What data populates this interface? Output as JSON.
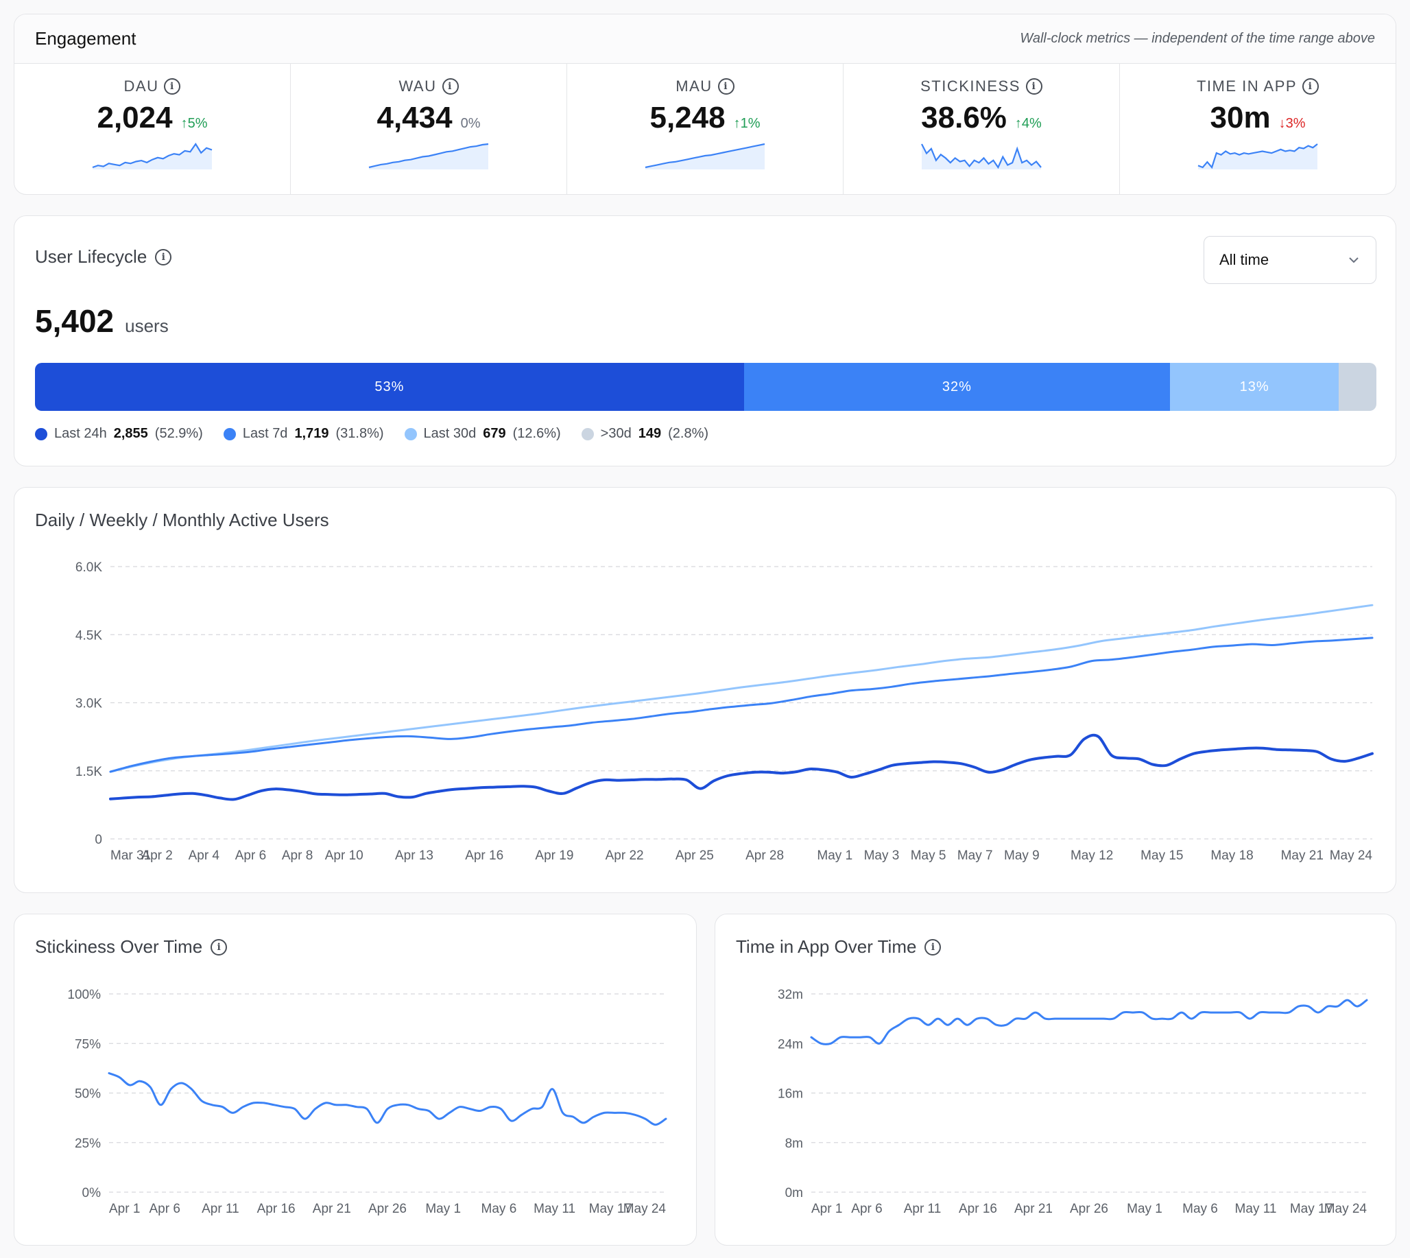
{
  "engagement": {
    "title": "Engagement",
    "note": "Wall-clock metrics — independent of the time range above",
    "metrics": [
      {
        "label": "DAU",
        "value": "2,024",
        "delta": "↑5%",
        "trend": "up",
        "spark": [
          10,
          12,
          11,
          14,
          13,
          12,
          15,
          14,
          16,
          17,
          15,
          18,
          20,
          19,
          22,
          24,
          23,
          27,
          26,
          34,
          25,
          30,
          28
        ]
      },
      {
        "label": "WAU",
        "value": "4,434",
        "delta": "0%",
        "trend": "flat",
        "spark": [
          10,
          12,
          14,
          15,
          17,
          18,
          20,
          21,
          23,
          25,
          26,
          28,
          30,
          32,
          33,
          35,
          37,
          39,
          40,
          42,
          43
        ]
      },
      {
        "label": "MAU",
        "value": "5,248",
        "delta": "↑1%",
        "trend": "up",
        "spark": [
          10,
          12,
          14,
          16,
          18,
          19,
          21,
          23,
          25,
          27,
          29,
          30,
          32,
          34,
          36,
          38,
          40,
          42,
          44,
          46,
          48
        ]
      },
      {
        "label": "STICKINESS",
        "value": "38.6%",
        "delta": "↑4%",
        "trend": "up",
        "spark": [
          34,
          26,
          30,
          20,
          25,
          22,
          18,
          22,
          19,
          20,
          15,
          20,
          18,
          22,
          17,
          20,
          14,
          23,
          16,
          18,
          30,
          18,
          20,
          16,
          19,
          14
        ]
      },
      {
        "label": "TIME IN APP",
        "value": "30m",
        "delta": "↓3%",
        "trend": "down",
        "spark": [
          14,
          12,
          18,
          12,
          28,
          26,
          30,
          27,
          28,
          26,
          28,
          27,
          28,
          29,
          30,
          29,
          28,
          30,
          32,
          30,
          31,
          30,
          34,
          33,
          36,
          34,
          38
        ]
      }
    ]
  },
  "lifecycle": {
    "title": "User Lifecycle",
    "range": "All time",
    "total": "5,402",
    "total_unit": "users",
    "segments": [
      {
        "name": "Last 24h",
        "count": "2,855",
        "pct": "(52.9%)",
        "bar_label": "53%",
        "fraction": 0.529,
        "color": "#1d4ed8"
      },
      {
        "name": "Last 7d",
        "count": "1,719",
        "pct": "(31.8%)",
        "bar_label": "32%",
        "fraction": 0.318,
        "color": "#3b82f6"
      },
      {
        "name": "Last 30d",
        "count": "679",
        "pct": "(12.6%)",
        "bar_label": "13%",
        "fraction": 0.126,
        "color": "#93c5fd"
      },
      {
        "name": ">30d",
        "count": "149",
        "pct": "(2.8%)",
        "bar_label": "",
        "fraction": 0.028,
        "color": "#cbd5e1"
      }
    ]
  },
  "chart_data": [
    {
      "type": "line",
      "title": "Daily / Weekly / Monthly Active Users",
      "ylim": [
        0,
        6000
      ],
      "y_ticks": [
        "0",
        "1.5K",
        "3.0K",
        "4.5K",
        "6.0K"
      ],
      "x_ticks": [
        "Mar 31",
        "Apr 2",
        "Apr 4",
        "Apr 6",
        "Apr 8",
        "Apr 10",
        "Apr 13",
        "Apr 16",
        "Apr 19",
        "Apr 22",
        "Apr 25",
        "Apr 28",
        "May 1",
        "May 3",
        "May 5",
        "May 7",
        "May 9",
        "May 12",
        "May 15",
        "May 18",
        "May 21",
        "May 24"
      ],
      "x_tick_days": [
        0,
        2,
        4,
        6,
        8,
        10,
        13,
        16,
        19,
        22,
        25,
        28,
        31,
        33,
        35,
        37,
        39,
        42,
        45,
        48,
        51,
        54
      ],
      "grid": true,
      "series": [
        {
          "color": "#93c5fd",
          "width": 3,
          "values": [
            1480,
            1600,
            1700,
            1780,
            1840,
            1890,
            1950,
            2020,
            2090,
            2160,
            2220,
            2280,
            2340,
            2400,
            2460,
            2520,
            2580,
            2640,
            2700,
            2760,
            2830,
            2900,
            2960,
            3020,
            3080,
            3140,
            3200,
            3270,
            3340,
            3400,
            3460,
            3530,
            3600,
            3660,
            3720,
            3790,
            3850,
            3920,
            3970,
            4000,
            4060,
            4120,
            4180,
            4260,
            4360,
            4420,
            4480,
            4540,
            4600,
            4680,
            4750,
            4820,
            4880,
            4940,
            5010,
            5080,
            5150
          ]
        },
        {
          "color": "#3b82f6",
          "width": 3,
          "values": [
            1480,
            1600,
            1700,
            1780,
            1820,
            1850,
            1880,
            1920,
            1980,
            2030,
            2080,
            2130,
            2180,
            2220,
            2250,
            2260,
            2230,
            2200,
            2240,
            2310,
            2370,
            2420,
            2460,
            2500,
            2560,
            2600,
            2640,
            2700,
            2760,
            2800,
            2860,
            2910,
            2950,
            2990,
            3060,
            3140,
            3200,
            3270,
            3300,
            3350,
            3420,
            3470,
            3510,
            3550,
            3590,
            3640,
            3680,
            3730,
            3800,
            3920,
            3950,
            4000,
            4060,
            4120,
            4170,
            4230,
            4260,
            4290,
            4270,
            4310,
            4350,
            4370,
            4400,
            4430
          ]
        },
        {
          "color": "#1d4ed8",
          "width": 4,
          "values": [
            880,
            900,
            920,
            930,
            960,
            990,
            1000,
            960,
            900,
            870,
            960,
            1060,
            1100,
            1080,
            1040,
            990,
            980,
            970,
            980,
            990,
            1000,
            930,
            920,
            1000,
            1050,
            1090,
            1110,
            1130,
            1140,
            1150,
            1160,
            1140,
            1050,
            1000,
            1120,
            1240,
            1300,
            1290,
            1300,
            1310,
            1310,
            1320,
            1300,
            1110,
            1280,
            1390,
            1440,
            1470,
            1470,
            1450,
            1480,
            1540,
            1520,
            1470,
            1360,
            1430,
            1520,
            1620,
            1660,
            1680,
            1700,
            1690,
            1660,
            1580,
            1470,
            1520,
            1640,
            1740,
            1790,
            1820,
            1850,
            2200,
            2260,
            1840,
            1780,
            1760,
            1640,
            1620,
            1760,
            1880,
            1930,
            1960,
            1980,
            2000,
            2000,
            1970,
            1960,
            1950,
            1920,
            1760,
            1710,
            1780,
            1880
          ]
        }
      ]
    },
    {
      "type": "line",
      "title": "Stickiness Over Time",
      "ylim": [
        0,
        100
      ],
      "y_ticks": [
        "0%",
        "25%",
        "50%",
        "75%",
        "100%"
      ],
      "x_ticks": [
        "Apr 1",
        "Apr 6",
        "Apr 11",
        "Apr 16",
        "Apr 21",
        "Apr 26",
        "May 1",
        "May 6",
        "May 11",
        "May 17",
        "May 24"
      ],
      "grid": true,
      "series": [
        {
          "color": "#3b82f6",
          "width": 3,
          "values": [
            60,
            58,
            54,
            56,
            53,
            44,
            52,
            55,
            52,
            46,
            44,
            43,
            40,
            43,
            45,
            45,
            44,
            43,
            42,
            37,
            42,
            45,
            44,
            44,
            43,
            42,
            35,
            42,
            44,
            44,
            42,
            41,
            37,
            40,
            43,
            42,
            41,
            43,
            42,
            36,
            39,
            42,
            43,
            52,
            40,
            38,
            35,
            38,
            40,
            40,
            40,
            39,
            37,
            34,
            37
          ]
        }
      ]
    },
    {
      "type": "line",
      "title": "Time in App Over Time",
      "ylim": [
        0,
        32
      ],
      "y_ticks": [
        "0m",
        "8m",
        "16m",
        "24m",
        "32m"
      ],
      "x_ticks": [
        "Apr 1",
        "Apr 6",
        "Apr 11",
        "Apr 16",
        "Apr 21",
        "Apr 26",
        "May 1",
        "May 6",
        "May 11",
        "May 17",
        "May 24"
      ],
      "grid": true,
      "series": [
        {
          "color": "#3b82f6",
          "width": 3,
          "values": [
            25,
            24,
            24,
            25,
            25,
            25,
            25,
            24,
            26,
            27,
            28,
            28,
            27,
            28,
            27,
            28,
            27,
            28,
            28,
            27,
            27,
            28,
            28,
            29,
            28,
            28,
            28,
            28,
            28,
            28,
            28,
            28,
            29,
            29,
            29,
            28,
            28,
            28,
            29,
            28,
            29,
            29,
            29,
            29,
            29,
            28,
            29,
            29,
            29,
            29,
            30,
            30,
            29,
            30,
            30,
            31,
            30,
            31
          ]
        }
      ]
    }
  ]
}
